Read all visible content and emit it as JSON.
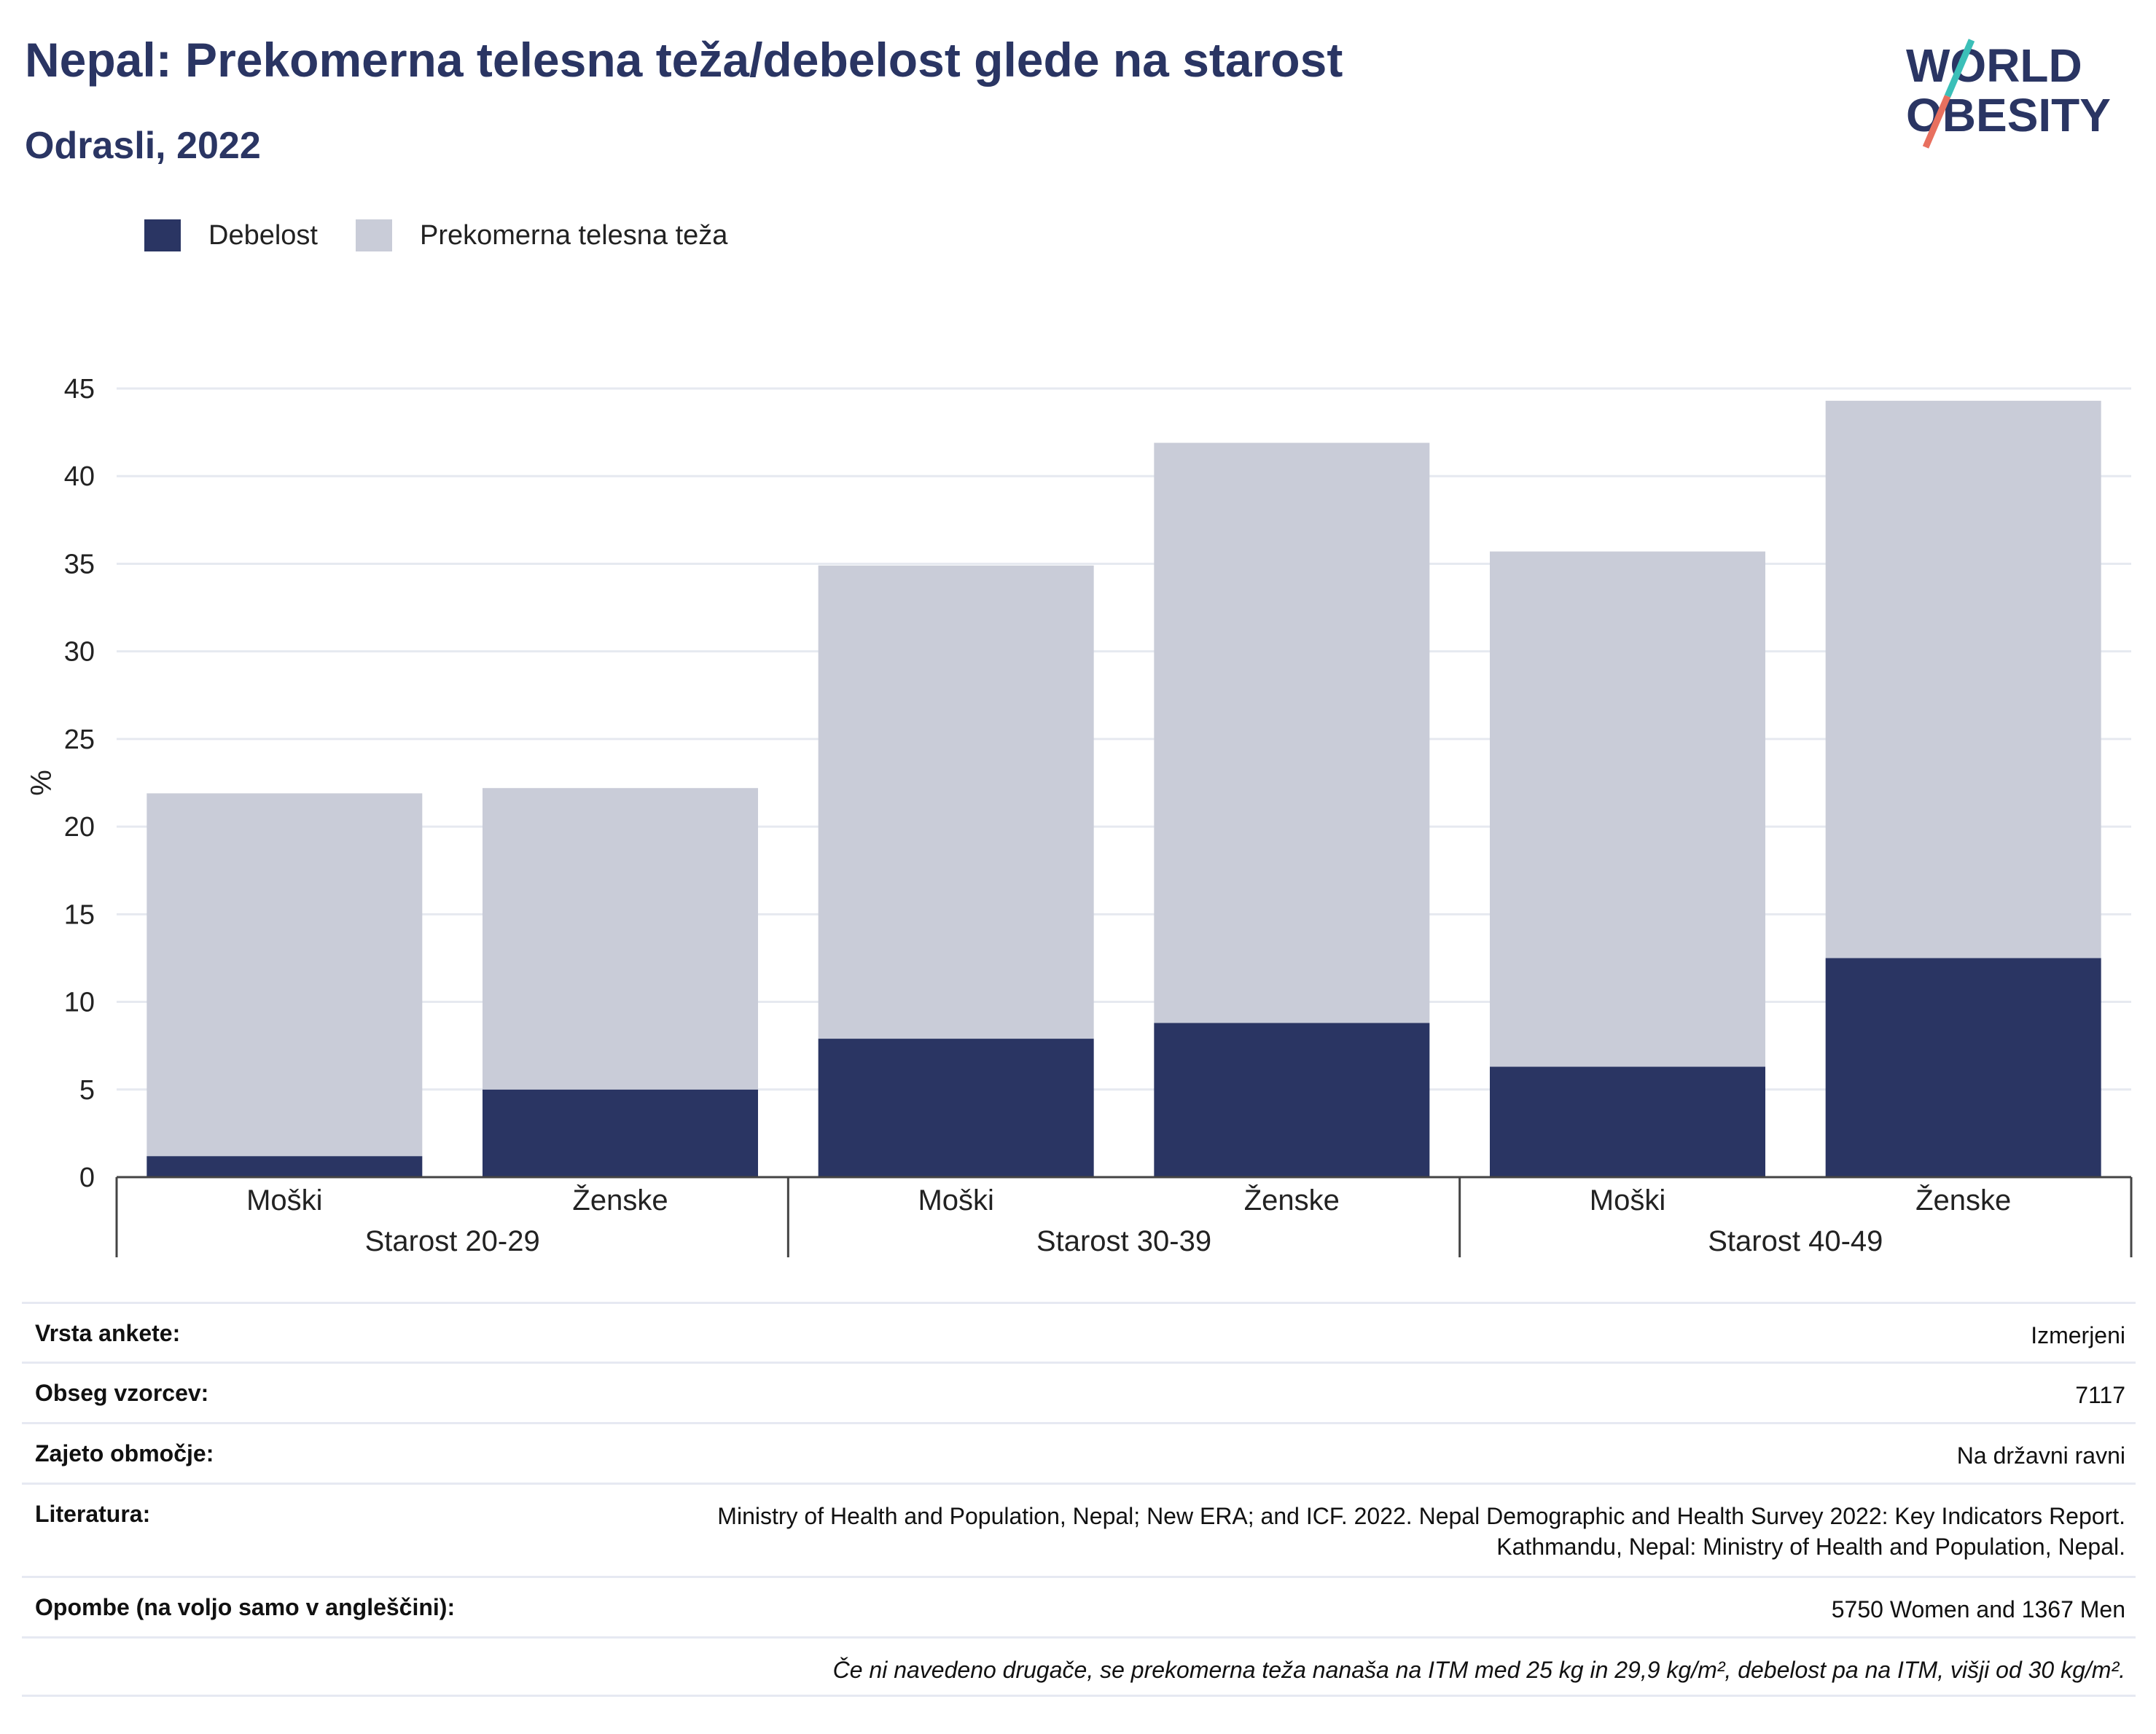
{
  "header": {
    "title": "Nepal: Prekomerna telesna teža/debelost glede na starost",
    "subtitle": "Odrasli, 2022"
  },
  "logo": {
    "line1": "WORLD",
    "line2": "OBESITY",
    "colors": {
      "text": "#2a3563",
      "slash_top": "#3bbfb8",
      "slash_bottom": "#e8705f"
    }
  },
  "legend": [
    {
      "label": "Debelost",
      "color": "#2a3563"
    },
    {
      "label": "Prekomerna telesna teža",
      "color": "#c9ccd8"
    }
  ],
  "chart_data": {
    "type": "bar",
    "stacked": true,
    "ylabel": "%",
    "ylim": [
      0,
      45
    ],
    "yticks": [
      0,
      5,
      10,
      15,
      20,
      25,
      30,
      35,
      40,
      45
    ],
    "grid": true,
    "groups": [
      "Starost 20-29",
      "Starost 30-39",
      "Starost 40-49"
    ],
    "categories": [
      "Moški",
      "Ženske",
      "Moški",
      "Ženske",
      "Moški",
      "Ženske"
    ],
    "series": [
      {
        "name": "Debelost",
        "color": "#2a3563",
        "values": [
          1.2,
          5.0,
          7.9,
          8.8,
          6.3,
          12.5
        ]
      },
      {
        "name": "Prekomerna telesna teža",
        "color": "#c9ccd8",
        "values": [
          20.7,
          17.2,
          27.0,
          33.1,
          29.4,
          31.8
        ]
      }
    ]
  },
  "info": [
    {
      "key": "Vrsta ankete:",
      "value": "Izmerjeni"
    },
    {
      "key": "Obseg vzorcev:",
      "value": "7117"
    },
    {
      "key": "Zajeto območje:",
      "value": "Na državni ravni"
    },
    {
      "key": "Literatura:",
      "value_line1": "Ministry of Health and Population, Nepal; New ERA; and ICF. 2022. Nepal Demographic and Health Survey 2022: Key Indicators Report.",
      "value_line2": "Kathmandu, Nepal: Ministry of Health and Population, Nepal."
    },
    {
      "key": "Opombe (na voljo samo v angleščini):",
      "value": "5750 Women and 1367 Men"
    }
  ],
  "footnote": "Če ni navedeno drugače, se prekomerna teža nanaša na ITM med 25 kg in 29,9 kg/m², debelost pa na ITM, višji od 30 kg/m²."
}
